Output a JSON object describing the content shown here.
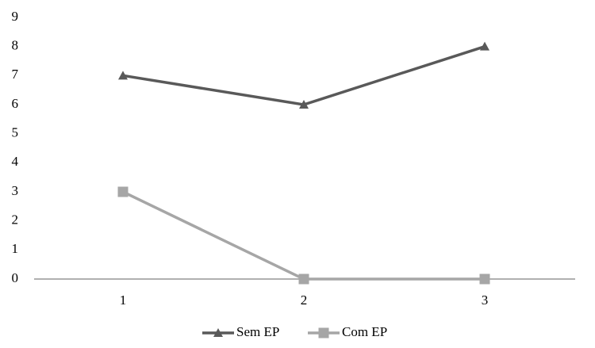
{
  "chart_data": {
    "type": "line",
    "categories": [
      "1",
      "2",
      "3"
    ],
    "series": [
      {
        "name": "Sem EP",
        "color": "#595959",
        "marker": "triangle",
        "values": [
          7,
          6,
          8
        ]
      },
      {
        "name": "Com EP",
        "color": "#a6a6a6",
        "marker": "square",
        "values": [
          3,
          0,
          0
        ]
      }
    ],
    "ylim": [
      0,
      9
    ],
    "yticks": [
      0,
      1,
      2,
      3,
      4,
      5,
      6,
      7,
      8,
      9
    ],
    "grid": false,
    "legend": "bottom"
  }
}
